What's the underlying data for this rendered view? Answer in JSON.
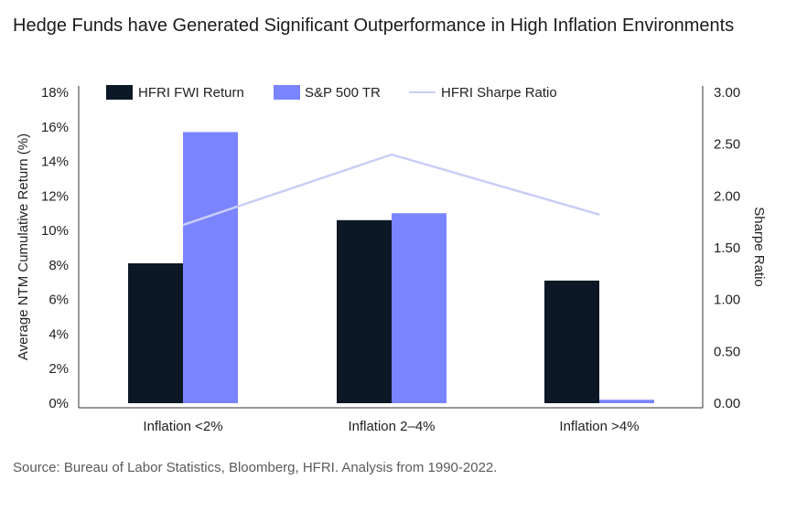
{
  "chart_data": {
    "type": "bar",
    "title": "Hedge Funds have Generated Significant Outperformance in High Inflation Environments",
    "categories": [
      "Inflation <2%",
      "Inflation 2–4%",
      "Inflation >4%"
    ],
    "series": [
      {
        "name": "HFRI FWI Return",
        "kind": "bar",
        "axis": "left",
        "color": "#0d1826",
        "values": [
          8.1,
          10.6,
          7.1
        ]
      },
      {
        "name": "S&P 500 TR",
        "kind": "bar",
        "axis": "left",
        "color": "#7b84ff",
        "values": [
          15.7,
          11.0,
          0.2
        ]
      },
      {
        "name": "HFRI Sharpe Ratio",
        "kind": "line",
        "axis": "right",
        "color": "#c9cdf7",
        "values": [
          1.72,
          2.4,
          1.82
        ]
      }
    ],
    "ylabel": "Average NTM Cumulative Return (%)",
    "ylim": [
      0,
      18
    ],
    "y_ticks": [
      "0%",
      "2%",
      "4%",
      "6%",
      "8%",
      "10%",
      "12%",
      "14%",
      "16%",
      "18%"
    ],
    "y2label": "Sharpe Ratio",
    "y2lim": [
      0,
      3
    ],
    "y2_ticks": [
      "0.00",
      "0.50",
      "1.00",
      "1.50",
      "2.00",
      "2.50",
      "3.00"
    ],
    "legend_position": "top",
    "source": "Source: Bureau of Labor Statistics, Bloomberg, HFRI. Analysis from 1990-2022."
  }
}
